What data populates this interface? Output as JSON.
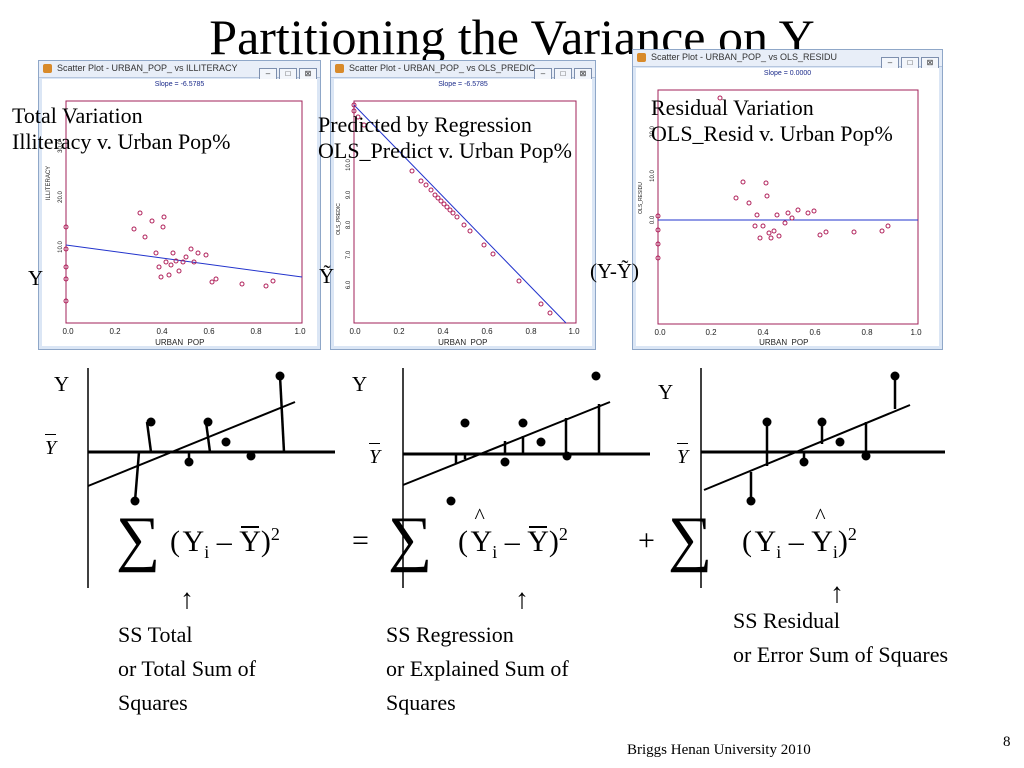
{
  "title": "Partitioning the Variance on Y",
  "windows": [
    {
      "caption": "Scatter Plot - URBAN_POP_ vs ILLITERACY",
      "slope": "Slope = -6.5785",
      "ylabel": "ILLITERACY",
      "xlabel": "URBAN_POP_",
      "yticks": [
        "10.0",
        "20.0",
        "30.0"
      ],
      "xticks": [
        "0.0",
        "0.2",
        "0.4",
        "0.6",
        "0.8",
        "1.0"
      ]
    },
    {
      "caption": "Scatter Plot - URBAN_POP_ vs OLS_PREDIC",
      "slope": "Slope = -6.5785",
      "ylabel": "OLS_PREDIC",
      "xlabel": "URBAN_POP_",
      "yticks": [
        "6.0",
        "7.0",
        "8.0",
        "9.0",
        "10.0"
      ],
      "xticks": [
        "0.0",
        "0.2",
        "0.4",
        "0.6",
        "0.8",
        "1.0"
      ]
    },
    {
      "caption": "Scatter Plot - URBAN_POP_ vs OLS_RESIDU",
      "slope": "Slope =  0.0000",
      "ylabel": "OLS_RESIDU",
      "xlabel": "URBAN_POP_",
      "yticks": [
        "0.0",
        "10.0",
        "20.0"
      ],
      "xticks": [
        "0.0",
        "0.2",
        "0.4",
        "0.6",
        "0.8",
        "1.0"
      ]
    }
  ],
  "window_buttons": [
    "–",
    "□",
    "⊠"
  ],
  "labels": {
    "total_line1": "Total Variation",
    "total_line2": "Illiteracy v. Urban Pop%",
    "pred_line1": "Predicted by Regression",
    "pred_line2": "OLS_Predict v. Urban Pop%",
    "resid_line1": "Residual Variation",
    "resid_line2": "OLS_Resid v. Urban Pop%",
    "y_sym": "Y",
    "yhat_sym": "Ỹ",
    "resid_sym": "(Y-Ỹ)"
  },
  "diagrams": {
    "y_label": "Y",
    "ybar_label": "Y"
  },
  "formula": {
    "paren_open": "(",
    "y": "Y",
    "i": "i",
    "minus": "–",
    "paren_close": ")",
    "sq": "2",
    "equals": "=",
    "plus": "+",
    "sum": "∑"
  },
  "arrows": {
    "up": "↑"
  },
  "ss": {
    "total_1": "SS Total",
    "total_2": "or Total Sum of",
    "total_3": "Squares",
    "reg_1": "SS Regression",
    "reg_2": "or Explained Sum of",
    "reg_3": "Squares",
    "res_1": "SS Residual",
    "res_2": "or Error Sum of Squares"
  },
  "footer": {
    "credit": "Briggs  Henan University 2010",
    "page": "8"
  }
}
